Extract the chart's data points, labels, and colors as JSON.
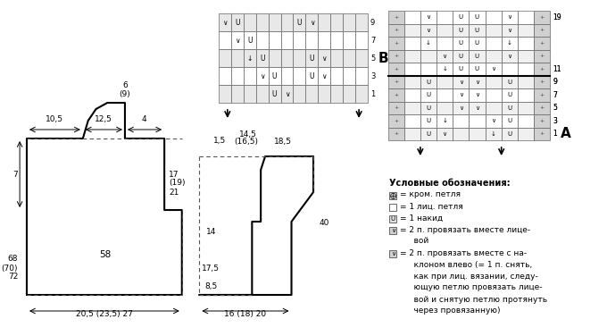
{
  "bg_color": "#ffffff",
  "grid_color": "#888888",
  "line_color": "#000000",
  "dashed_color": "#555555",
  "legend_title": "Условные обозначения:",
  "legend_items": [
    "⨁ = кром. петля",
    "□ = 1 лиц. петля",
    "U = 1 накид",
    "∨ = 2 п. провязать вместе лице-вой",
    "⨁ = 2 п. провязать вместе с на-клоном влево"
  ]
}
